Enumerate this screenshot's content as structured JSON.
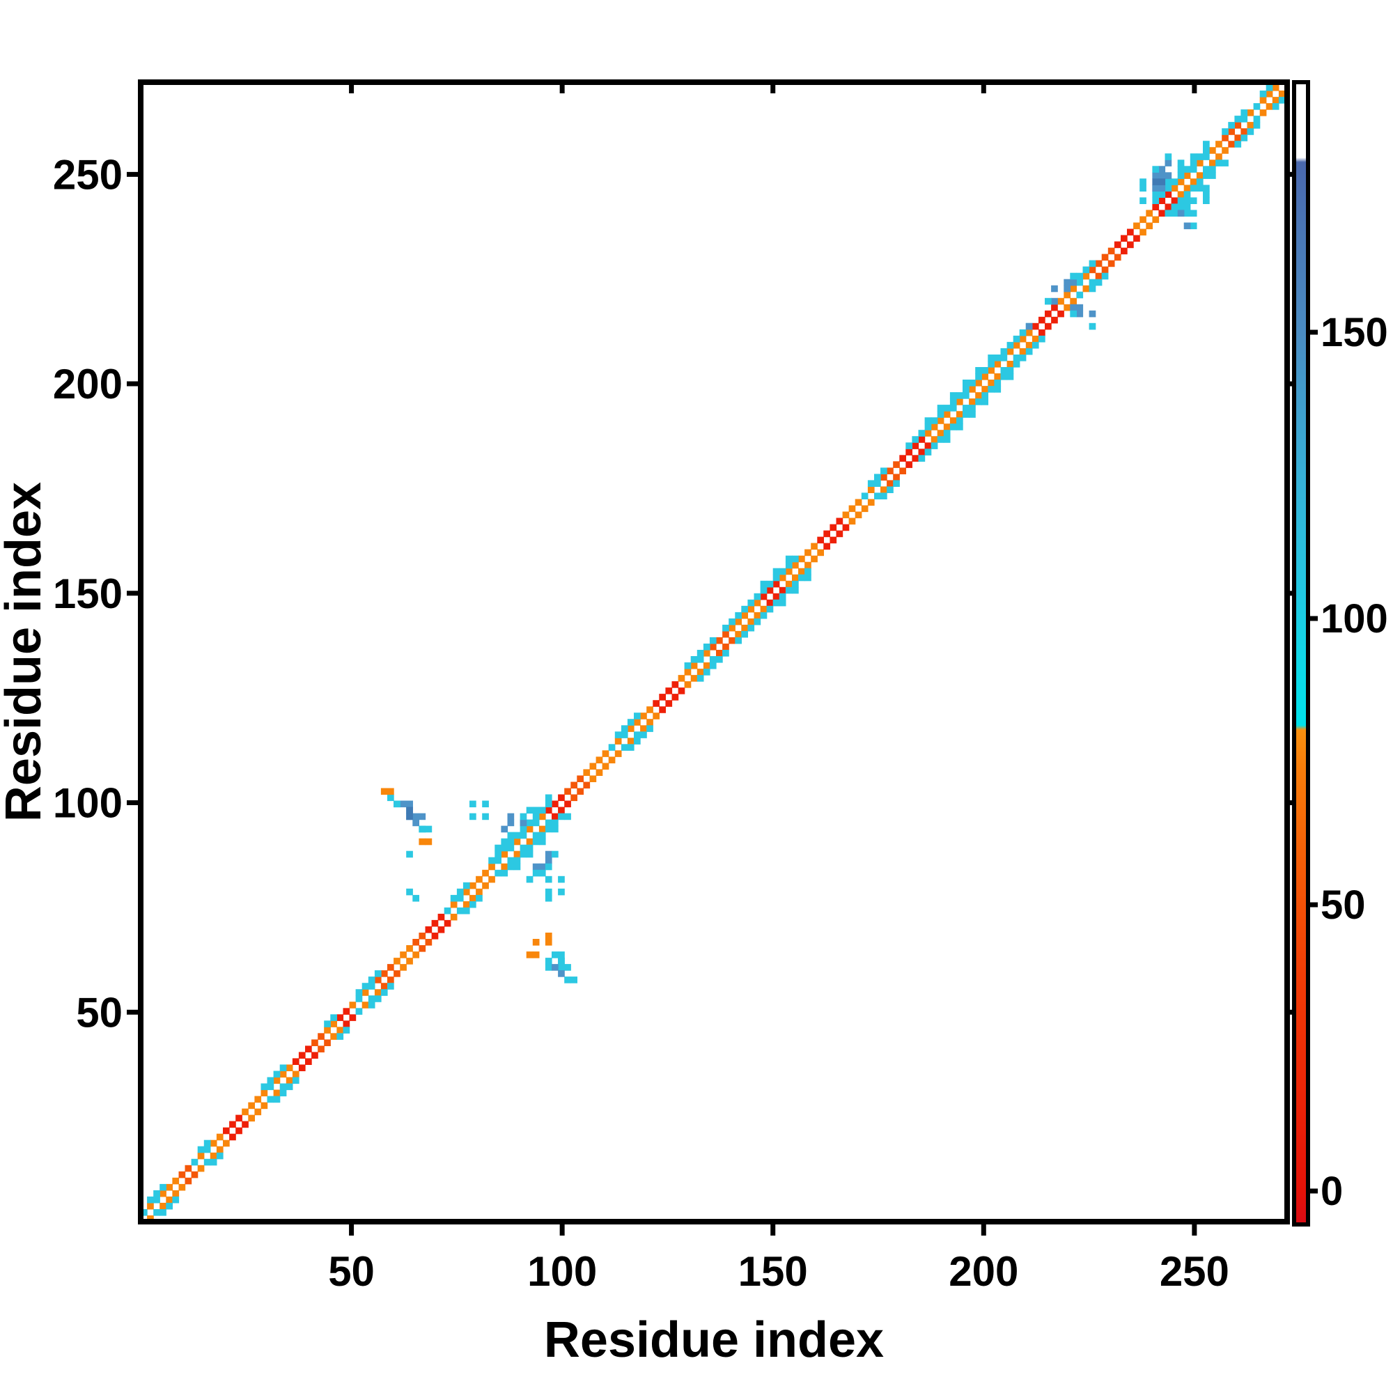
{
  "figure": {
    "background": "#ffffff",
    "kind": "protein residue-residue contact map, diagonal band with off-diagonal contact clusters"
  },
  "chart_data": {
    "type": "heatmap",
    "title": "",
    "xlabel": "Residue index",
    "ylabel": "Residue index",
    "x_range": [
      0,
      272
    ],
    "y_range": [
      0,
      272
    ],
    "x_ticks": [
      50,
      100,
      150,
      200,
      250
    ],
    "y_ticks": [
      50,
      100,
      150,
      200,
      250
    ],
    "grid": false,
    "legend_position": "right-colorbar",
    "cell_size_residues": 1.5,
    "palette": {
      "o": "#f8860b",
      "O": "#fa9a12",
      "d": "#f45708",
      "r": "#ee2008",
      "c": "#2cc8e2",
      "C": "#00dde8",
      "b": "#4e93c8",
      "B": "#3f7ab4",
      "w": "#ffffff"
    },
    "diagonal_runs": [
      [
        0,
        6,
        "m"
      ],
      [
        6,
        10,
        "o"
      ],
      [
        10,
        13,
        "d"
      ],
      [
        13,
        17,
        "m"
      ],
      [
        17,
        21,
        "o"
      ],
      [
        21,
        25,
        "r"
      ],
      [
        25,
        30,
        "o"
      ],
      [
        30,
        34,
        "m"
      ],
      [
        34,
        37,
        "o"
      ],
      [
        37,
        41,
        "r"
      ],
      [
        41,
        44,
        "d"
      ],
      [
        44,
        48,
        "o"
      ],
      [
        48,
        51,
        "r"
      ],
      [
        51,
        57,
        "m"
      ],
      [
        57,
        61,
        "d"
      ],
      [
        61,
        66,
        "o"
      ],
      [
        66,
        69,
        "d"
      ],
      [
        69,
        73,
        "r"
      ],
      [
        73,
        78,
        "m"
      ],
      [
        78,
        83,
        "o"
      ],
      [
        83,
        97,
        "m"
      ],
      [
        97,
        101,
        "r"
      ],
      [
        101,
        106,
        "d"
      ],
      [
        106,
        112,
        "o"
      ],
      [
        112,
        118,
        "m"
      ],
      [
        118,
        123,
        "o"
      ],
      [
        123,
        129,
        "r"
      ],
      [
        129,
        133,
        "o"
      ],
      [
        133,
        136,
        "m"
      ],
      [
        136,
        140,
        "d"
      ],
      [
        140,
        148,
        "o"
      ],
      [
        148,
        152,
        "r"
      ],
      [
        152,
        161,
        "o"
      ],
      [
        161,
        167,
        "r"
      ],
      [
        167,
        172,
        "o"
      ],
      [
        172,
        176,
        "m"
      ],
      [
        176,
        181,
        "d"
      ],
      [
        181,
        187,
        "r"
      ],
      [
        187,
        193,
        "o"
      ],
      [
        193,
        198,
        "m"
      ],
      [
        198,
        203,
        "o"
      ],
      [
        203,
        208,
        "m"
      ],
      [
        208,
        213,
        "o"
      ],
      [
        213,
        218,
        "r"
      ],
      [
        218,
        222,
        "o"
      ],
      [
        222,
        226,
        "m"
      ],
      [
        226,
        232,
        "d"
      ],
      [
        232,
        236,
        "r"
      ],
      [
        236,
        241,
        "o"
      ],
      [
        241,
        245,
        "r"
      ],
      [
        245,
        250,
        "o"
      ],
      [
        250,
        254,
        "m"
      ],
      [
        254,
        258,
        "o"
      ],
      [
        258,
        262,
        "d"
      ],
      [
        262,
        266,
        "m"
      ],
      [
        266,
        272,
        "o"
      ]
    ],
    "cyan_flank_runs": [
      [
        1,
        6,
        1
      ],
      [
        13,
        17,
        1
      ],
      [
        28,
        34,
        1
      ],
      [
        43,
        47,
        1
      ],
      [
        51,
        57,
        1
      ],
      [
        73,
        78,
        1
      ],
      [
        83,
        97,
        2
      ],
      [
        112,
        118,
        1
      ],
      [
        129,
        136,
        1
      ],
      [
        138,
        146,
        1
      ],
      [
        146,
        156,
        2
      ],
      [
        172,
        177,
        1
      ],
      [
        181,
        186,
        1
      ],
      [
        186,
        202,
        2
      ],
      [
        202,
        212,
        1
      ],
      [
        222,
        227,
        1
      ],
      [
        240,
        254,
        2
      ],
      [
        256,
        262,
        1
      ],
      [
        265,
        270,
        1
      ]
    ],
    "off_diagonal_clusters": [
      {
        "name": "upper-left-arc-blue",
        "color": "b",
        "cells": [
          [
            61,
            99
          ],
          [
            63,
            99
          ],
          [
            62,
            100
          ],
          [
            63,
            97
          ],
          [
            65,
            97
          ],
          [
            64,
            98
          ],
          [
            65,
            95
          ],
          [
            64,
            100
          ],
          [
            66,
            96
          ]
        ]
      },
      {
        "name": "upper-left-arc-dark",
        "color": "B",
        "cells": [
          [
            63,
            98
          ],
          [
            64,
            96
          ]
        ]
      },
      {
        "name": "upper-left-arc-fringe",
        "color": "c",
        "cells": [
          [
            60,
            100
          ],
          [
            59,
            101
          ],
          [
            67,
            94
          ],
          [
            68,
            94
          ],
          [
            66,
            93
          ]
        ]
      },
      {
        "name": "upper-left-arc-tip",
        "color": "o",
        "cells": [
          [
            58,
            102
          ],
          [
            59,
            102
          ]
        ]
      },
      {
        "name": "arc-below-orange",
        "color": "o",
        "cells": [
          [
            66,
            90
          ],
          [
            68,
            90
          ]
        ]
      },
      {
        "name": "arc-below-cyan",
        "color": "c",
        "cells": [
          [
            64,
            88
          ],
          [
            64,
            79
          ],
          [
            65,
            77
          ]
        ]
      },
      {
        "name": "mid-left-square",
        "color": "c",
        "cells": [
          [
            79,
            97
          ],
          [
            81,
            97
          ],
          [
            79,
            99
          ],
          [
            81,
            99
          ]
        ]
      },
      {
        "name": "mid-left-square-mirror",
        "color": "c",
        "cells": [
          [
            97,
            79
          ],
          [
            99,
            79
          ],
          [
            97,
            81
          ],
          [
            99,
            81
          ],
          [
            96,
            77
          ]
        ]
      },
      {
        "name": "cross-90-above-blue",
        "color": "b",
        "cells": [
          [
            88,
            95
          ],
          [
            90,
            95
          ],
          [
            88,
            97
          ],
          [
            86,
            93
          ]
        ]
      },
      {
        "name": "cross-90-above-cyan",
        "color": "c",
        "cells": [
          [
            86,
            91
          ],
          [
            90,
            97
          ],
          [
            92,
            98
          ]
        ]
      },
      {
        "name": "cross-90-below-blue",
        "color": "b",
        "cells": [
          [
            95,
            85
          ],
          [
            96,
            86
          ],
          [
            94,
            84
          ],
          [
            97,
            87
          ]
        ]
      },
      {
        "name": "cross-90-below-cyan",
        "color": "c",
        "cells": [
          [
            93,
            83
          ],
          [
            95,
            83
          ],
          [
            97,
            85
          ],
          [
            92,
            81
          ],
          [
            98,
            88
          ]
        ]
      },
      {
        "name": "below-diag-100-60-orange",
        "color": "o",
        "cells": [
          [
            92,
            64
          ],
          [
            94,
            64
          ],
          [
            94,
            66
          ],
          [
            96,
            66
          ],
          [
            96,
            68
          ]
        ]
      },
      {
        "name": "below-diag-100-60-cyan",
        "color": "c",
        "cells": [
          [
            97,
            62
          ],
          [
            99,
            62
          ],
          [
            99,
            60
          ],
          [
            101,
            60
          ],
          [
            98,
            64
          ],
          [
            100,
            62
          ],
          [
            101,
            58
          ],
          [
            103,
            58
          ],
          [
            100,
            64
          ],
          [
            97,
            60
          ]
        ]
      },
      {
        "name": "below-diag-100-60-blue",
        "color": "b",
        "cells": [
          [
            98,
            61
          ],
          [
            100,
            59
          ]
        ]
      },
      {
        "name": "cluster-222-above-blue",
        "color": "b",
        "cells": [
          [
            217,
            222
          ],
          [
            219,
            222
          ],
          [
            219,
            224
          ],
          [
            221,
            224
          ],
          [
            217,
            220
          ]
        ]
      },
      {
        "name": "cluster-222-above-cyan",
        "color": "c",
        "cells": [
          [
            215,
            220
          ],
          [
            221,
            226
          ]
        ]
      },
      {
        "name": "cluster-222-below-blue",
        "color": "b",
        "cells": [
          [
            221,
            218
          ],
          [
            223,
            218
          ],
          [
            223,
            216
          ],
          [
            225,
            216
          ]
        ]
      },
      {
        "name": "cluster-222-below-cyan",
        "color": "c",
        "cells": [
          [
            225,
            214
          ],
          [
            221,
            216
          ]
        ]
      },
      {
        "name": "cluster-212-blue",
        "color": "b",
        "cells": [
          [
            210,
            214
          ]
        ]
      },
      {
        "name": "cluster-250-above-blue",
        "color": "b",
        "cells": [
          [
            240,
            247
          ],
          [
            242,
            247
          ],
          [
            240,
            249
          ],
          [
            242,
            249
          ],
          [
            244,
            250
          ],
          [
            244,
            252
          ],
          [
            242,
            251
          ],
          [
            241,
            246
          ]
        ]
      },
      {
        "name": "cluster-250-above-dark",
        "color": "B",
        "cells": [
          [
            242,
            248
          ],
          [
            241,
            248
          ]
        ]
      },
      {
        "name": "cluster-250-above-cyan",
        "color": "c",
        "cells": [
          [
            238,
            246
          ],
          [
            238,
            248
          ],
          [
            244,
            254
          ],
          [
            246,
            252
          ],
          [
            240,
            251
          ],
          [
            237,
            244
          ]
        ]
      },
      {
        "name": "cluster-250-below-cyan",
        "color": "c",
        "cells": [
          [
            246,
            242
          ],
          [
            248,
            242
          ],
          [
            248,
            240
          ],
          [
            250,
            240
          ],
          [
            250,
            243
          ],
          [
            252,
            243
          ],
          [
            252,
            245
          ],
          [
            250,
            238
          ],
          [
            253,
            246
          ]
        ]
      },
      {
        "name": "cluster-250-below-blue",
        "color": "b",
        "cells": [
          [
            248,
            238
          ],
          [
            246,
            240
          ]
        ]
      }
    ],
    "colorbar": {
      "ticks": [
        0,
        50,
        100,
        150
      ],
      "range": [
        -6,
        194
      ],
      "orientation": "vertical",
      "stops": [
        [
          0.0,
          "#d90b15"
        ],
        [
          0.029,
          "#e31208"
        ],
        [
          0.12,
          "#eb2607"
        ],
        [
          0.22,
          "#f03d06"
        ],
        [
          0.32,
          "#f45e07"
        ],
        [
          0.4,
          "#f77d0a"
        ],
        [
          0.433,
          "#f9900f"
        ],
        [
          0.437,
          "#00e1ea"
        ],
        [
          0.5,
          "#12d5e6"
        ],
        [
          0.57,
          "#26c4e0"
        ],
        [
          0.65,
          "#36b1d7"
        ],
        [
          0.73,
          "#429bcb"
        ],
        [
          0.78,
          "#4a8cc2"
        ],
        [
          0.86,
          "#4a79b7"
        ],
        [
          0.93,
          "#4a68ad"
        ],
        [
          0.934,
          "#ffffff"
        ],
        [
          1.0,
          "#ffffff"
        ]
      ]
    }
  }
}
